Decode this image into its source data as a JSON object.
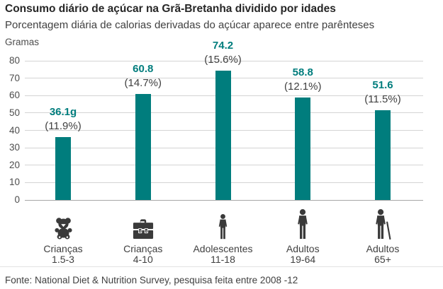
{
  "header": {
    "title": "Consumo diário de açúcar na Grã-Bretanha dividido por idades",
    "subtitle": "Porcentagem diária de calorias derivadas do açúcar aparece entre parênteses"
  },
  "chart_data": {
    "type": "bar",
    "title": "Consumo diário de açúcar na Grã-Bretanha dividido por idades",
    "subtitle": "Porcentagem diária de calorias derivadas do açúcar aparece entre parênteses",
    "unit_label": "Gramas",
    "ylabel": "Gramas",
    "xlabel": "",
    "ylim": [
      0,
      80
    ],
    "yticks": [
      80,
      70,
      60,
      50,
      40,
      30,
      20,
      10,
      0
    ],
    "grid": true,
    "legend": "none",
    "bar_color": "#007d7d",
    "categories": [
      "Crianças 1.5-3",
      "Crianças 4-10",
      "Adolescentes 11-18",
      "Adultos 19-64",
      "Adultos 65+"
    ],
    "values": [
      36.1,
      60.8,
      74.2,
      58.8,
      51.6
    ],
    "percent_of_calories": [
      11.9,
      14.7,
      15.6,
      12.1,
      11.5
    ],
    "bars": [
      {
        "category_line1": "Crianças",
        "category_line2": "1.5-3",
        "value": 36.1,
        "value_label": "36.1g",
        "percent_label": "(11.9%)",
        "icon": "teddy-bear-icon"
      },
      {
        "category_line1": "Crianças",
        "category_line2": "4-10",
        "value": 60.8,
        "value_label": "60.8",
        "percent_label": "(14.7%)",
        "icon": "school-bag-icon"
      },
      {
        "category_line1": "Adolescentes",
        "category_line2": "11-18",
        "value": 74.2,
        "value_label": "74.2",
        "percent_label": "(15.6%)",
        "icon": "teen-person-icon"
      },
      {
        "category_line1": "Adultos",
        "category_line2": "19-64",
        "value": 58.8,
        "value_label": "58.8",
        "percent_label": "(12.1%)",
        "icon": "adult-person-icon"
      },
      {
        "category_line1": "Adultos",
        "category_line2": "65+",
        "value": 51.6,
        "value_label": "51.6",
        "percent_label": "(11.5%)",
        "icon": "senior-person-icon"
      }
    ]
  },
  "footer": {
    "source": "Fonte: National Diet & Nutrition Survey, pesquisa feita entre 2008 -12"
  },
  "colors": {
    "bar": "#007d7d",
    "value_label": "#007d7d",
    "title_text": "#262626",
    "body_text": "#404040",
    "axis_text": "#4d4d4d",
    "gridline": "#d4d4d4",
    "baseline": "#a6a6a6",
    "icon": "#3a3a3a",
    "separator": "#e2e2e2",
    "background": "#ffffff"
  }
}
